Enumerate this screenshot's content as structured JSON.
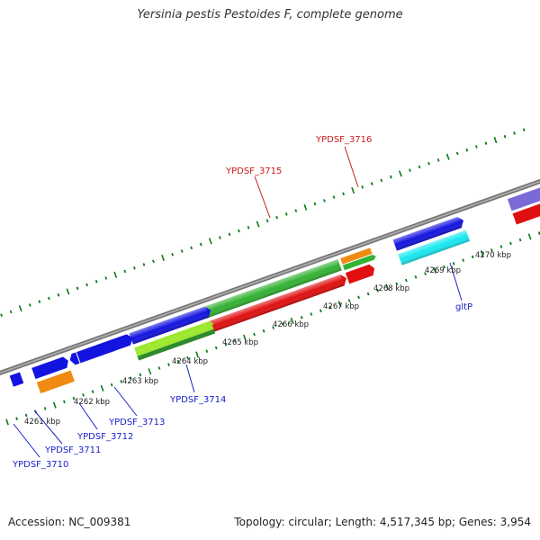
{
  "title": "Yersinia pestis Pestoides F, complete genome",
  "footer": {
    "accession": "Accession: NC_009381",
    "stats": "Topology: circular; Length: 4,517,345 bp; Genes: 3,954"
  },
  "colors": {
    "backbone": "#8a8a8a",
    "tick": "#0f7a1a",
    "gene_label_blue": "#1a22c8",
    "gene_label_red": "#c81a1a",
    "cds_blue": "#1414e0",
    "cds_red": "#e01010",
    "cds_green": "#33b233",
    "cds_orange": "#f08a10",
    "cds_cyan": "#18e8f0",
    "cds_lightgreen": "#9ee830",
    "cds_darkgreen": "#2e8a2e",
    "cds_purple": "#7a6ad8"
  },
  "kbp_labels": [
    {
      "text": "4261 kbp"
    },
    {
      "text": "4262 kbp"
    },
    {
      "text": "4263 kbp"
    },
    {
      "text": "4264 kbp"
    },
    {
      "text": "4265 kbp"
    },
    {
      "text": "4266 kbp"
    },
    {
      "text": "4267 kbp"
    },
    {
      "text": "4268 kbp"
    },
    {
      "text": "4269 kbp"
    },
    {
      "text": "4270 kbp"
    }
  ],
  "gene_labels": [
    {
      "text": "YPDSF_3710",
      "color": "blue"
    },
    {
      "text": "YPDSF_3711",
      "color": "blue"
    },
    {
      "text": "YPDSF_3712",
      "color": "blue"
    },
    {
      "text": "YPDSF_3713",
      "color": "blue"
    },
    {
      "text": "YPDSF_3714",
      "color": "blue"
    },
    {
      "text": "YPDSF_3715",
      "color": "red"
    },
    {
      "text": "YPDSF_3716",
      "color": "red"
    },
    {
      "text": "gltP",
      "color": "blue"
    }
  ]
}
